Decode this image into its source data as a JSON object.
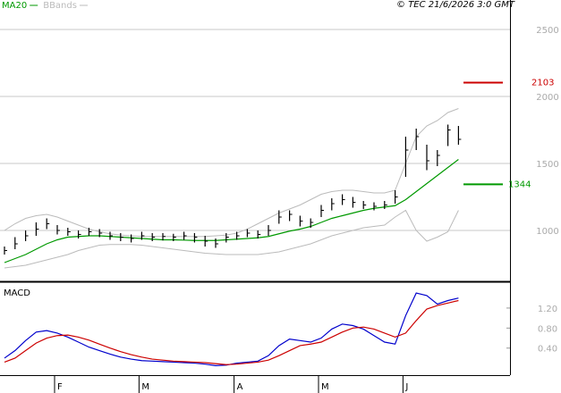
{
  "chart_data": [
    {
      "type": "ohlc",
      "copyright": "© TEC 21/6/2026 3:0 GMT",
      "ohlc": {
        "color": "#000000",
        "high": [
          880,
          950,
          1000,
          1060,
          1090,
          1040,
          1020,
          1000,
          1020,
          1010,
          990,
          980,
          970,
          990,
          980,
          980,
          975,
          990,
          980,
          960,
          940,
          980,
          990,
          1010,
          1000,
          1040,
          1150,
          1150,
          1110,
          1090,
          1190,
          1240,
          1270,
          1250,
          1220,
          1210,
          1220,
          1300,
          1700,
          1760,
          1640,
          1600,
          1790,
          1780
        ],
        "low": [
          820,
          860,
          920,
          960,
          1010,
          970,
          960,
          940,
          960,
          950,
          930,
          920,
          910,
          930,
          920,
          925,
          920,
          930,
          910,
          880,
          870,
          910,
          930,
          950,
          940,
          960,
          1050,
          1070,
          1030,
          1020,
          1100,
          1150,
          1190,
          1170,
          1160,
          1150,
          1160,
          1200,
          1400,
          1600,
          1450,
          1480,
          1630,
          1640
        ],
        "close": [
          850,
          900,
          960,
          1010,
          1050,
          1000,
          990,
          970,
          990,
          980,
          960,
          950,
          940,
          960,
          950,
          955,
          950,
          960,
          950,
          920,
          900,
          950,
          960,
          980,
          970,
          1000,
          1100,
          1120,
          1070,
          1060,
          1150,
          1200,
          1230,
          1210,
          1190,
          1180,
          1190,
          1250,
          1600,
          1700,
          1520,
          1560,
          1750,
          1680
        ]
      },
      "series": [
        {
          "name": "MA20",
          "color": "#009900",
          "values": [
            760,
            790,
            820,
            860,
            900,
            930,
            950,
            955,
            960,
            960,
            955,
            950,
            945,
            940,
            935,
            930,
            930,
            928,
            925,
            925,
            925,
            930,
            935,
            940,
            945,
            955,
            975,
            995,
            1010,
            1030,
            1060,
            1090,
            1110,
            1130,
            1150,
            1165,
            1175,
            1185,
            1230,
            1290,
            1350,
            1410,
            1470,
            1530
          ]
        },
        {
          "name": "BBands",
          "color": "#bbbbbb",
          "upper": [
            1000,
            1050,
            1090,
            1110,
            1120,
            1100,
            1070,
            1040,
            1010,
            990,
            975,
            965,
            960,
            955,
            955,
            955,
            955,
            955,
            955,
            955,
            960,
            965,
            980,
            1010,
            1050,
            1090,
            1130,
            1160,
            1190,
            1230,
            1270,
            1290,
            1300,
            1300,
            1290,
            1280,
            1280,
            1300,
            1500,
            1700,
            1780,
            1820,
            1880,
            1910
          ],
          "lower": [
            720,
            730,
            740,
            760,
            780,
            800,
            820,
            850,
            870,
            890,
            895,
            895,
            895,
            890,
            880,
            870,
            860,
            850,
            840,
            830,
            825,
            820,
            820,
            820,
            820,
            830,
            840,
            860,
            880,
            900,
            930,
            960,
            980,
            1000,
            1020,
            1030,
            1040,
            1100,
            1150,
            1000,
            920,
            950,
            990,
            1150
          ]
        }
      ],
      "reference_lines": [
        {
          "value": 2103,
          "color": "#cc0000"
        },
        {
          "value": 1344,
          "color": "#009900"
        }
      ],
      "ylim": [
        620,
        2720
      ],
      "yticks": [
        1000,
        1500,
        2000,
        2500
      ],
      "grid": true
    },
    {
      "type": "line",
      "title": "MACD",
      "categories": [
        null,
        null,
        null,
        null,
        null,
        "F",
        null,
        null,
        null,
        null,
        null,
        null,
        null,
        "M",
        null,
        null,
        null,
        null,
        null,
        null,
        null,
        null,
        "A",
        null,
        null,
        null,
        null,
        null,
        null,
        null,
        "M",
        null,
        null,
        null,
        null,
        null,
        null,
        null,
        "J",
        null,
        null,
        null,
        null,
        null
      ],
      "series": [
        {
          "color": "#0000cc",
          "values": [
            0.2,
            0.35,
            0.55,
            0.72,
            0.75,
            0.7,
            0.62,
            0.52,
            0.42,
            0.35,
            0.28,
            0.22,
            0.18,
            0.15,
            0.14,
            0.13,
            0.12,
            0.11,
            0.1,
            0.08,
            0.05,
            0.06,
            0.1,
            0.12,
            0.14,
            0.25,
            0.45,
            0.58,
            0.55,
            0.52,
            0.6,
            0.78,
            0.88,
            0.85,
            0.78,
            0.65,
            0.52,
            0.48,
            1.05,
            1.5,
            1.45,
            1.28,
            1.35,
            1.4
          ]
        },
        {
          "color": "#cc0000",
          "values": [
            0.12,
            0.2,
            0.35,
            0.5,
            0.6,
            0.65,
            0.66,
            0.62,
            0.56,
            0.48,
            0.4,
            0.33,
            0.27,
            0.22,
            0.18,
            0.16,
            0.14,
            0.13,
            0.12,
            0.11,
            0.09,
            0.07,
            0.08,
            0.1,
            0.12,
            0.16,
            0.25,
            0.35,
            0.45,
            0.48,
            0.52,
            0.62,
            0.72,
            0.8,
            0.82,
            0.78,
            0.7,
            0.62,
            0.7,
            0.95,
            1.18,
            1.25,
            1.3,
            1.35
          ]
        }
      ],
      "ylim": [
        -0.14,
        1.68
      ],
      "yticks": [
        {
          "value": 0.4,
          "label": "0.40"
        },
        {
          "value": 0.8,
          "label": "0.80"
        },
        {
          "value": 1.2,
          "label": "1.20"
        }
      ],
      "grid": false
    }
  ]
}
